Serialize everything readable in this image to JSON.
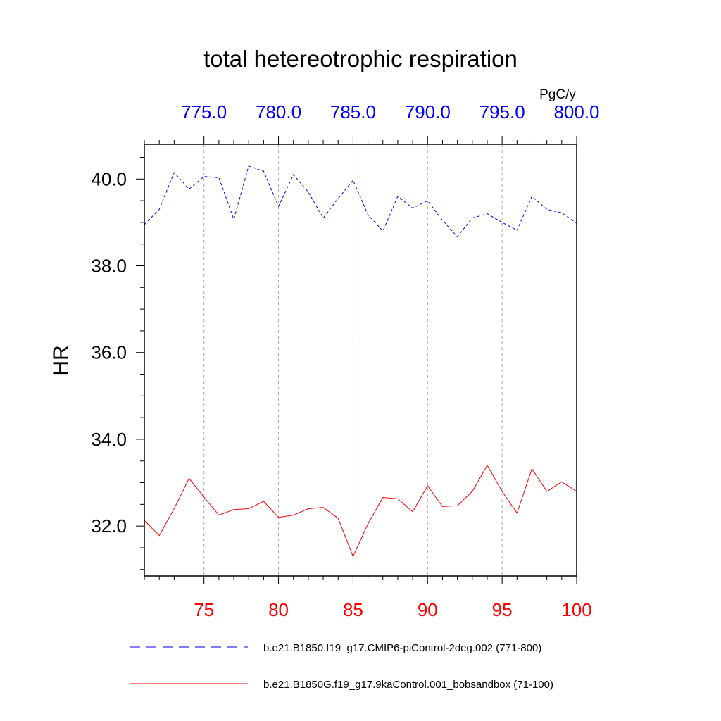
{
  "chart_data": {
    "type": "line",
    "title": "total hetereotrophic respiration",
    "ylabel": "HR",
    "units": "PgC/y",
    "ylim": [
      30.85,
      40.8
    ],
    "yticks": [
      32.0,
      34.0,
      36.0,
      38.0,
      40.0
    ],
    "yticklabels": [
      "32.0",
      "34.0",
      "36.0",
      "38.0",
      "40.0"
    ],
    "grid": "vertical dashed at major bottom ticks",
    "axis_bottom": {
      "xlim": [
        71,
        100
      ],
      "ticks": [
        75,
        80,
        85,
        90,
        95,
        100
      ],
      "ticklabels": [
        "75",
        "80",
        "85",
        "90",
        "95",
        "100"
      ],
      "color": "#ff0000"
    },
    "axis_top": {
      "xlim": [
        771,
        800
      ],
      "ticks": [
        775,
        780,
        785,
        790,
        795,
        800
      ],
      "ticklabels": [
        "775.0",
        "780.0",
        "785.0",
        "790.0",
        "795.0",
        "800.0"
      ],
      "color": "#0000ff"
    },
    "legend_position": "bottom",
    "series": [
      {
        "name": "b.e21.B1850.f19_g17.CMIP6-piControl-2deg.002 (771-800)",
        "axis": "top",
        "color": "#0000ff",
        "dash": "dashed",
        "x": [
          771,
          772,
          773,
          774,
          775,
          776,
          777,
          778,
          779,
          780,
          781,
          782,
          783,
          784,
          785,
          786,
          787,
          788,
          789,
          790,
          791,
          792,
          793,
          794,
          795,
          796,
          797,
          798,
          799,
          800
        ],
        "values": [
          38.95,
          39.3,
          40.15,
          39.77,
          40.06,
          40.03,
          39.07,
          40.3,
          40.18,
          39.37,
          40.1,
          39.7,
          39.1,
          39.55,
          39.97,
          39.18,
          38.8,
          39.6,
          39.33,
          39.5,
          39.05,
          38.67,
          39.1,
          39.2,
          39.0,
          38.82,
          39.6,
          39.3,
          39.22,
          38.98
        ]
      },
      {
        "name": "b.e21.B1850G.f19_g17.9kaControl.001_bobsandbox (71-100)",
        "axis": "bottom",
        "color": "#ff0000",
        "dash": "solid",
        "x": [
          71,
          72,
          73,
          74,
          75,
          76,
          77,
          78,
          79,
          80,
          81,
          82,
          83,
          84,
          85,
          86,
          87,
          88,
          89,
          90,
          91,
          92,
          93,
          94,
          95,
          96,
          97,
          98,
          99,
          100
        ],
        "values": [
          32.13,
          31.78,
          32.4,
          33.1,
          32.67,
          32.25,
          32.38,
          32.4,
          32.57,
          32.2,
          32.25,
          32.4,
          32.43,
          32.18,
          31.3,
          32.05,
          32.66,
          32.63,
          32.33,
          32.93,
          32.45,
          32.47,
          32.8,
          33.4,
          32.8,
          32.3,
          33.32,
          32.8,
          33.02,
          32.8
        ]
      }
    ]
  }
}
